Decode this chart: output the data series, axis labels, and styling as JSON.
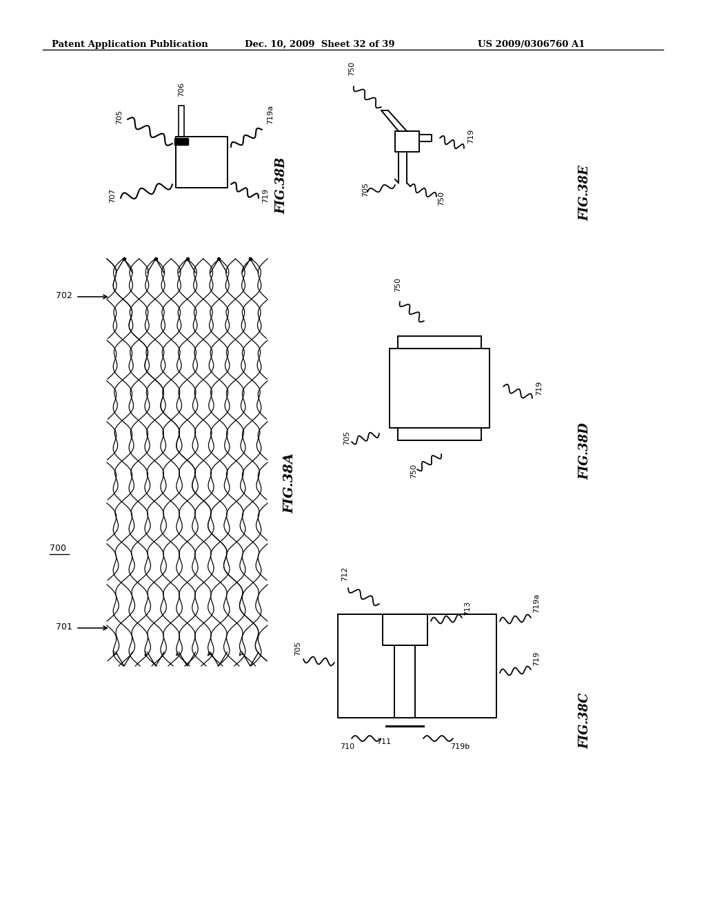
{
  "background_color": "#ffffff",
  "header_left": "Patent Application Publication",
  "header_mid": "Dec. 10, 2009  Sheet 32 of 39",
  "header_right": "US 2009/0306760 A1",
  "fig38A_label": "FIG.38A",
  "fig38B_label": "FIG.38B",
  "fig38C_label": "FIG.38C",
  "fig38D_label": "FIG.38D",
  "fig38E_label": "FIG.38E",
  "label_700": "700",
  "label_701": "701",
  "label_702": "702",
  "label_705_38B": "705",
  "label_706": "706",
  "label_707": "707",
  "label_719_38B": "719",
  "label_719a_38B": "719a",
  "label_705_38E": "705",
  "label_719_38E": "719",
  "label_750_38E_top": "750",
  "label_750_38E_bot": "750",
  "label_705_38D": "705",
  "label_719_38D": "719",
  "label_750_38D_top": "750",
  "label_750_38D_bot": "750",
  "label_705_38C": "705",
  "label_710": "710",
  "label_711": "711",
  "label_712": "712",
  "label_713": "713",
  "label_719_38C": "719",
  "label_719a_38C": "719a",
  "label_719b": "719b",
  "text_color": "#000000",
  "line_color": "#000000"
}
